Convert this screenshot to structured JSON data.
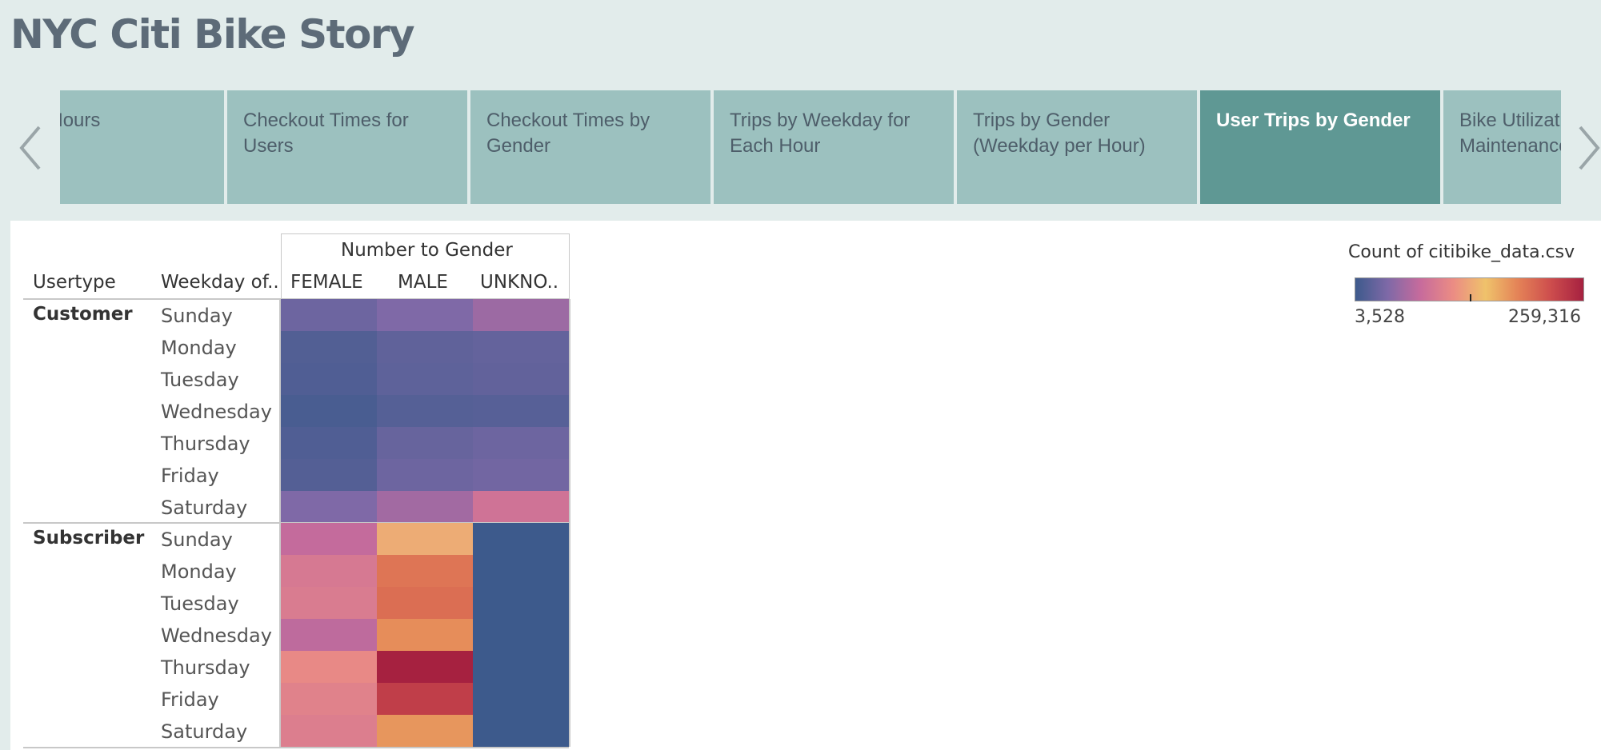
{
  "app_title": "NYC Citi Bike Story",
  "tabs": [
    {
      "label": "Peak Hours",
      "active": false
    },
    {
      "label": "Checkout Times for Users",
      "active": false
    },
    {
      "label": "Checkout Times by Gender",
      "active": false
    },
    {
      "label": "Trips by Weekday for Each Hour",
      "active": false
    },
    {
      "label": "Trips by Gender (Weekday per Hour)",
      "active": false
    },
    {
      "label": "User Trips by Gender",
      "active": true
    },
    {
      "label": "Bike Utilization Maintenance",
      "active": false
    }
  ],
  "icons": {
    "prev": "chevron-left-icon",
    "next": "chevron-right-icon"
  },
  "chart_data": {
    "type": "heatmap",
    "column_group_header": "Number to Gender",
    "row_headers": [
      "Usertype",
      "Weekday of.."
    ],
    "columns": [
      "FEMALE",
      "MALE",
      "UNKNO.."
    ],
    "groups": [
      {
        "usertype": "Customer",
        "rows": [
          {
            "weekday": "Sunday",
            "values": [
              30000,
              40000,
              55000
            ]
          },
          {
            "weekday": "Monday",
            "values": [
              15000,
              23000,
              25000
            ]
          },
          {
            "weekday": "Tuesday",
            "values": [
              14000,
              22000,
              24000
            ]
          },
          {
            "weekday": "Wednesday",
            "values": [
              10000,
              17000,
              18000
            ]
          },
          {
            "weekday": "Thursday",
            "values": [
              14000,
              27000,
              30000
            ]
          },
          {
            "weekday": "Friday",
            "values": [
              16000,
              30000,
              33000
            ]
          },
          {
            "weekday": "Saturday",
            "values": [
              40000,
              58000,
              85000
            ]
          }
        ]
      },
      {
        "usertype": "Subscriber",
        "rows": [
          {
            "weekday": "Sunday",
            "values": [
              75000,
              135000,
              3528
            ]
          },
          {
            "weekday": "Monday",
            "values": [
              92000,
              195000,
              3600
            ]
          },
          {
            "weekday": "Tuesday",
            "values": [
              95000,
              200000,
              3600
            ]
          },
          {
            "weekday": "Wednesday",
            "values": [
              72000,
              180000,
              3600
            ]
          },
          {
            "weekday": "Thursday",
            "values": [
              110000,
              259316,
              3600
            ]
          },
          {
            "weekday": "Friday",
            "values": [
              102000,
              235000,
              3600
            ]
          },
          {
            "weekday": "Saturday",
            "values": [
              98000,
              175000,
              3600
            ]
          }
        ]
      }
    ],
    "legend": {
      "title": "Count of citibike_data.csv",
      "min": 3528,
      "max": 259316,
      "min_label": "3,528",
      "max_label": "259,316",
      "palette": [
        "#3d5a8c",
        "#7f69a7",
        "#c76b9c",
        "#eb8c84",
        "#efc26b",
        "#e48257",
        "#cd4d4d",
        "#a62140"
      ]
    }
  }
}
